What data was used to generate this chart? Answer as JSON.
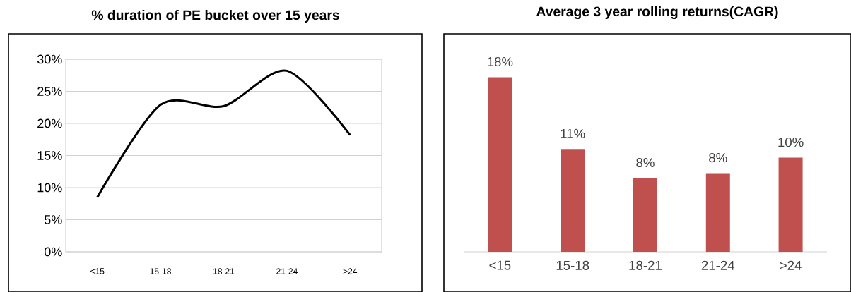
{
  "chart_data": [
    {
      "type": "line",
      "title": "% duration of PE bucket over 15 years",
      "categories": [
        "<15",
        "15-18",
        "18-21",
        "21-24",
        ">24"
      ],
      "series": [
        {
          "color": "#000000",
          "values": [
            8.5,
            22.9,
            22.7,
            28.2,
            18.2
          ]
        }
      ],
      "ylim": [
        0,
        30
      ],
      "yticks": [
        {
          "value": 0,
          "label": "0%"
        },
        {
          "value": 5,
          "label": "5%"
        },
        {
          "value": 10,
          "label": "10%"
        },
        {
          "value": 15,
          "label": "15%"
        },
        {
          "value": 20,
          "label": "20%"
        },
        {
          "value": 25,
          "label": "25%"
        },
        {
          "value": 30,
          "label": "30%"
        }
      ],
      "grid": "y",
      "marker": "none",
      "line_style": "solid"
    },
    {
      "type": "bar",
      "title": "Average 3 year rolling returns(CAGR)",
      "categories": [
        "<15",
        "15-18",
        "18-21",
        "21-24",
        ">24"
      ],
      "values": [
        18,
        10.6,
        7.6,
        8.1,
        9.7
      ],
      "color": "#c0504d",
      "value_labels": [
        "18%",
        "11%",
        "8%",
        "8%",
        "10%"
      ]
    }
  ]
}
